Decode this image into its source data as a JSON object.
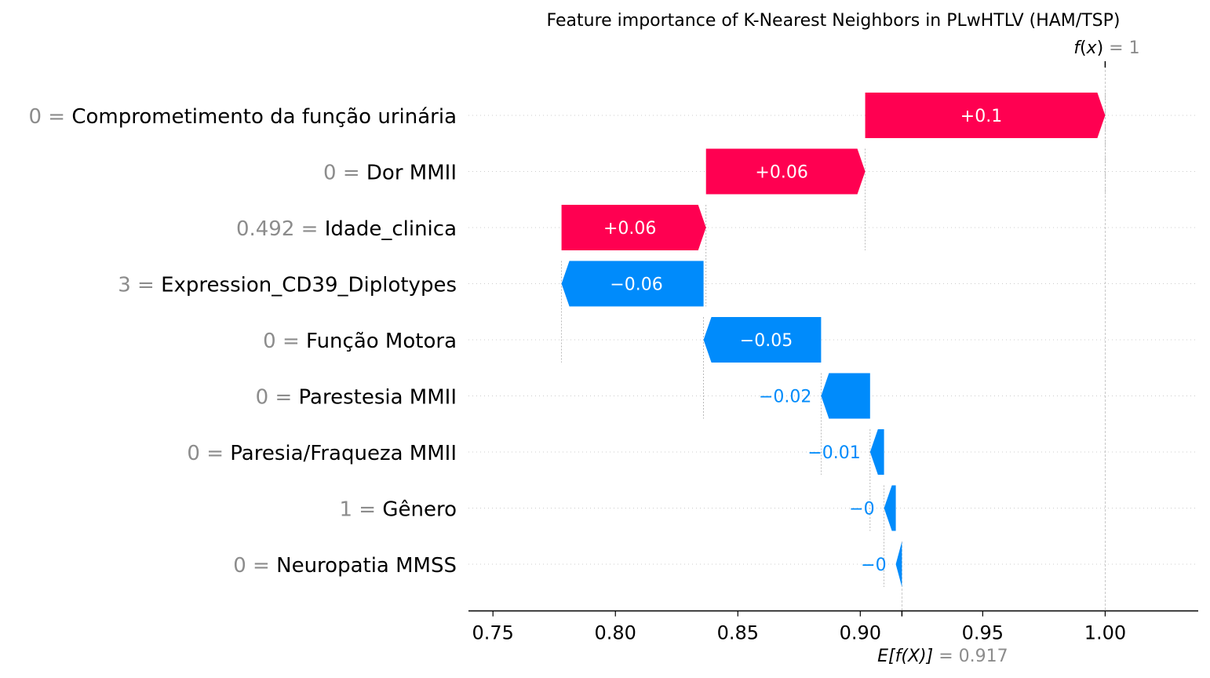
{
  "chart_data": {
    "type": "bar",
    "title": "Feature importance of K-Nearest Neighbors in PLwHTLV (HAM/TSP)",
    "fx": {
      "label_prefix": "f",
      "label_var": "x",
      "value_text": "1",
      "value": 1.0
    },
    "base": {
      "label": "E[f(X)]",
      "value_text": "0.917",
      "value": 0.917
    },
    "xlim": [
      0.74,
      1.038
    ],
    "xticks": [
      0.75,
      0.8,
      0.85,
      0.9,
      0.95,
      1.0
    ],
    "xtick_labels": [
      "0.75",
      "0.80",
      "0.85",
      "0.90",
      "0.95",
      "1.00"
    ],
    "grid": "horizontal dotted",
    "features": [
      {
        "value": "0",
        "name": "Comprometimento da função urinária",
        "start": 0.902,
        "end": 1.0,
        "label": "+0.1"
      },
      {
        "value": "0",
        "name": "Dor MMII",
        "start": 0.837,
        "end": 0.902,
        "label": "+0.06"
      },
      {
        "value": "0.492",
        "name": "Idade_clinica",
        "start": 0.778,
        "end": 0.837,
        "label": "+0.06"
      },
      {
        "value": "3",
        "name": "Expression_CD39_Diplotypes",
        "start": 0.836,
        "end": 0.778,
        "label": "−0.06"
      },
      {
        "value": "0",
        "name": "Função Motora",
        "start": 0.884,
        "end": 0.836,
        "label": "−0.05"
      },
      {
        "value": "0",
        "name": "Parestesia MMII",
        "start": 0.904,
        "end": 0.884,
        "label": "−0.02"
      },
      {
        "value": "0",
        "name": "Paresia/Fraqueza MMII",
        "start": 0.9097,
        "end": 0.904,
        "label": "−0.01"
      },
      {
        "value": "1",
        "name": "Gênero",
        "start": 0.9145,
        "end": 0.9097,
        "label": "−0"
      },
      {
        "value": "0",
        "name": "Neuropatia MMSS",
        "start": 0.917,
        "end": 0.9145,
        "label": "−0"
      }
    ]
  },
  "colors": {
    "positive": "#ff0051",
    "negative": "#008bfb",
    "muted": "#8c8c8c"
  }
}
